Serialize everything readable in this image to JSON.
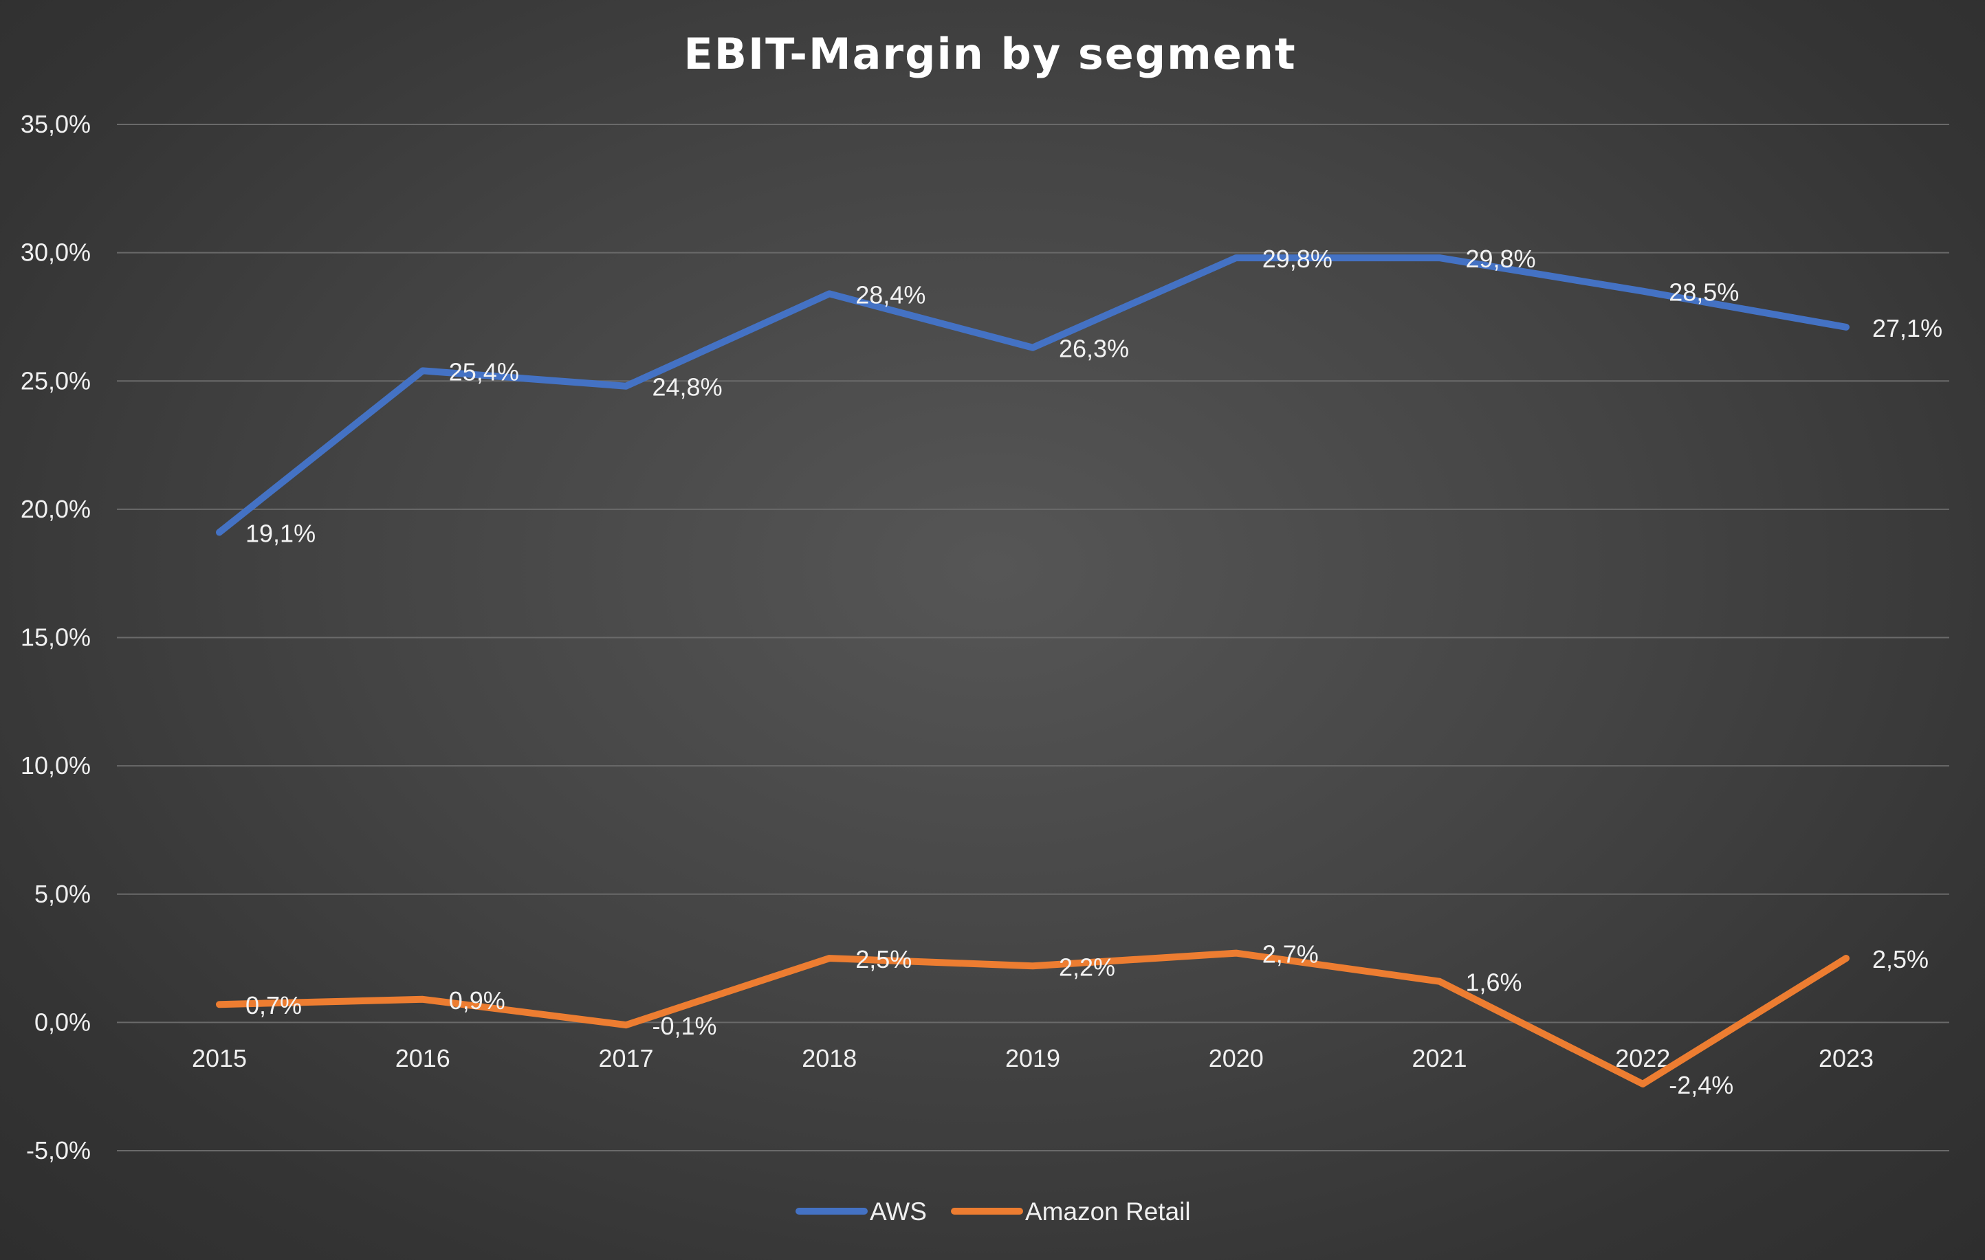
{
  "chart_data": {
    "type": "line",
    "title": "EBIT-Margin by segment",
    "xlabel": "",
    "ylabel": "",
    "categories": [
      "2015",
      "2016",
      "2017",
      "2018",
      "2019",
      "2020",
      "2021",
      "2022",
      "2023"
    ],
    "ylim": [
      -5,
      35
    ],
    "yticks": [
      -5,
      0,
      5,
      10,
      15,
      20,
      25,
      30,
      35
    ],
    "ytick_labels": [
      "-5,0%",
      "0,0%",
      "5,0%",
      "10,0%",
      "15,0%",
      "20,0%",
      "25,0%",
      "30,0%",
      "35,0%"
    ],
    "grid": true,
    "legend_position": "bottom",
    "series": [
      {
        "name": "AWS",
        "color": "#4472c4",
        "values": [
          19.1,
          25.4,
          24.8,
          28.4,
          26.3,
          29.8,
          29.8,
          28.5,
          27.1
        ],
        "labels": [
          "19,1%",
          "25,4%",
          "24,8%",
          "28,4%",
          "26,3%",
          "29,8%",
          "29,8%",
          "28,5%",
          "27,1%"
        ]
      },
      {
        "name": "Amazon Retail",
        "color": "#ed7d31",
        "values": [
          0.7,
          0.9,
          -0.1,
          2.5,
          2.2,
          2.7,
          1.6,
          -2.4,
          2.5
        ],
        "labels": [
          "0,7%",
          "0,9%",
          "-0,1%",
          "2,5%",
          "2,2%",
          "2,7%",
          "1,6%",
          "-2,4%",
          "2,5%"
        ]
      }
    ]
  }
}
